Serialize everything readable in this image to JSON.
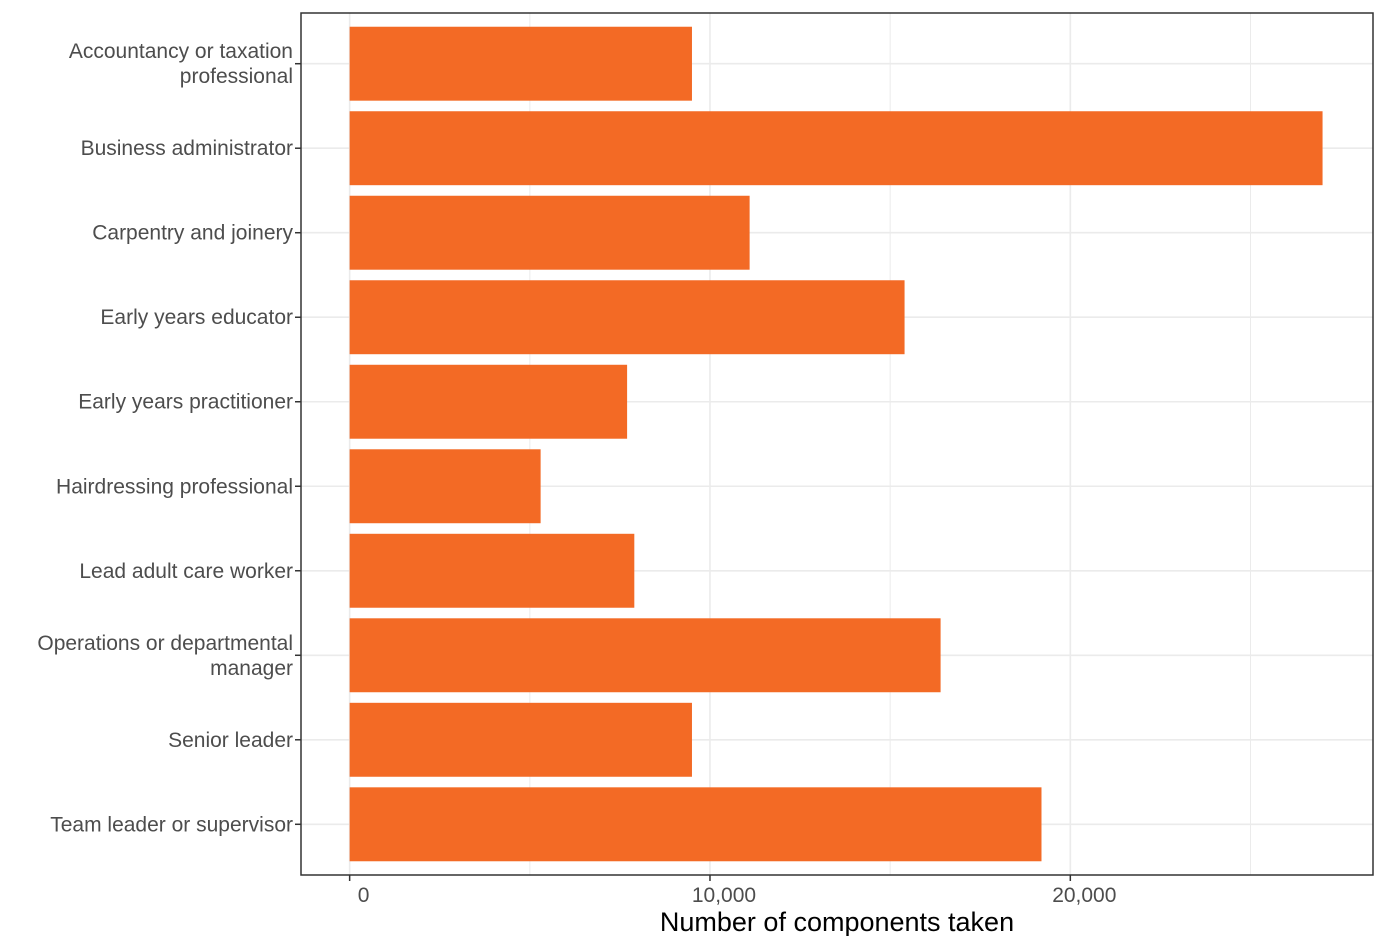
{
  "chart_data": {
    "type": "bar",
    "orientation": "horizontal",
    "categories": [
      [
        "Accountancy or taxation",
        "professional"
      ],
      [
        "Business administrator"
      ],
      [
        "Carpentry and joinery"
      ],
      [
        "Early years educator"
      ],
      [
        "Early years practitioner"
      ],
      [
        "Hairdressing professional"
      ],
      [
        "Lead adult care worker"
      ],
      [
        "Operations or departmental",
        "manager"
      ],
      [
        "Senior leader"
      ],
      [
        "Team leader or supervisor"
      ]
    ],
    "values": [
      9500,
      27000,
      11100,
      15400,
      7700,
      5300,
      7900,
      16400,
      9500,
      19200
    ],
    "xlabel": "Number of components taken",
    "ylabel": "",
    "xlim": [
      -1350,
      28400
    ],
    "xticks": [
      0,
      10000,
      20000
    ],
    "xtick_labels": [
      "0",
      "10,000",
      "20,000"
    ],
    "grid": true,
    "bar_color": "#f36a25",
    "grid_color": "#ebebeb",
    "panel_border_color": "#333333"
  }
}
